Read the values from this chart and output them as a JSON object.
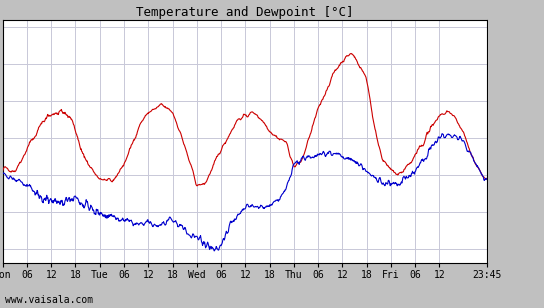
{
  "title": "Temperature and Dewpoint [°C]",
  "bg_color": "#c0c0c0",
  "plot_bg_color": "#ffffff",
  "grid_color": "#c8c8d8",
  "temp_color": "#cc0000",
  "dewpoint_color": "#0000cc",
  "ylim": [
    -12,
    21
  ],
  "yticks": [
    -10,
    -5,
    0,
    5,
    10,
    15,
    20
  ],
  "xlabel_bottom": "www.vaisala.com",
  "xtick_labels": [
    "Mon",
    "06",
    "12",
    "18",
    "Tue",
    "06",
    "12",
    "18",
    "Wed",
    "06",
    "12",
    "18",
    "Thu",
    "06",
    "12",
    "18",
    "Fri",
    "06",
    "12",
    "23:45"
  ],
  "xtick_positions": [
    0,
    6,
    12,
    18,
    24,
    30,
    36,
    42,
    48,
    54,
    60,
    66,
    72,
    78,
    84,
    90,
    96,
    102,
    108,
    119.75
  ],
  "total_hours": 119.75,
  "linewidth": 0.8,
  "ctrl_temp": [
    [
      0,
      1.0
    ],
    [
      3,
      0.5
    ],
    [
      6,
      3.5
    ],
    [
      10,
      7.5
    ],
    [
      12,
      8.0
    ],
    [
      15,
      8.5
    ],
    [
      17,
      7.5
    ],
    [
      20,
      2.5
    ],
    [
      22,
      0.5
    ],
    [
      24,
      -0.5
    ],
    [
      27,
      -1.0
    ],
    [
      30,
      1.5
    ],
    [
      34,
      7.0
    ],
    [
      36,
      8.5
    ],
    [
      38,
      9.0
    ],
    [
      39,
      9.5
    ],
    [
      40,
      9.2
    ],
    [
      42,
      8.5
    ],
    [
      44,
      5.5
    ],
    [
      46,
      2.0
    ],
    [
      48,
      -1.5
    ],
    [
      50,
      -1.2
    ],
    [
      54,
      3.5
    ],
    [
      58,
      7.5
    ],
    [
      60,
      8.0
    ],
    [
      62,
      8.5
    ],
    [
      64,
      7.5
    ],
    [
      66,
      6.0
    ],
    [
      68,
      5.0
    ],
    [
      70,
      4.5
    ],
    [
      72,
      1.0
    ],
    [
      74,
      2.0
    ],
    [
      78,
      9.0
    ],
    [
      82,
      14.0
    ],
    [
      84,
      15.5
    ],
    [
      85,
      16.0
    ],
    [
      86,
      16.5
    ],
    [
      87,
      16.0
    ],
    [
      88,
      15.0
    ],
    [
      90,
      13.0
    ],
    [
      92,
      6.0
    ],
    [
      94,
      2.0
    ],
    [
      96,
      0.5
    ],
    [
      98,
      0.0
    ],
    [
      100,
      1.0
    ],
    [
      102,
      2.5
    ],
    [
      106,
      6.5
    ],
    [
      108,
      8.0
    ],
    [
      110,
      8.5
    ],
    [
      112,
      7.5
    ],
    [
      114,
      5.5
    ],
    [
      116,
      2.5
    ],
    [
      118,
      0.5
    ],
    [
      119.75,
      -1.0
    ]
  ],
  "ctrl_dew": [
    [
      0,
      0.0
    ],
    [
      2,
      -0.3
    ],
    [
      4,
      -0.8
    ],
    [
      6,
      -1.5
    ],
    [
      8,
      -2.5
    ],
    [
      10,
      -3.2
    ],
    [
      12,
      -3.5
    ],
    [
      14,
      -3.8
    ],
    [
      16,
      -3.5
    ],
    [
      18,
      -3.2
    ],
    [
      20,
      -4.0
    ],
    [
      22,
      -4.5
    ],
    [
      24,
      -5.0
    ],
    [
      26,
      -5.5
    ],
    [
      28,
      -6.0
    ],
    [
      30,
      -6.2
    ],
    [
      32,
      -6.5
    ],
    [
      34,
      -6.8
    ],
    [
      36,
      -6.5
    ],
    [
      38,
      -7.0
    ],
    [
      40,
      -6.5
    ],
    [
      42,
      -6.2
    ],
    [
      44,
      -7.0
    ],
    [
      46,
      -8.0
    ],
    [
      48,
      -8.5
    ],
    [
      50,
      -9.5
    ],
    [
      51,
      -10.0
    ],
    [
      52,
      -10.2
    ],
    [
      53,
      -10.0
    ],
    [
      54,
      -9.5
    ],
    [
      56,
      -7.0
    ],
    [
      58,
      -5.5
    ],
    [
      60,
      -4.5
    ],
    [
      62,
      -4.2
    ],
    [
      64,
      -4.5
    ],
    [
      66,
      -4.2
    ],
    [
      68,
      -3.5
    ],
    [
      70,
      -2.0
    ],
    [
      72,
      1.5
    ],
    [
      74,
      2.0
    ],
    [
      76,
      2.5
    ],
    [
      78,
      2.8
    ],
    [
      80,
      3.0
    ],
    [
      82,
      3.0
    ],
    [
      84,
      2.5
    ],
    [
      86,
      2.0
    ],
    [
      88,
      1.5
    ],
    [
      90,
      0.5
    ],
    [
      92,
      -0.5
    ],
    [
      94,
      -1.0
    ],
    [
      96,
      -1.2
    ],
    [
      98,
      -1.0
    ],
    [
      100,
      -0.5
    ],
    [
      102,
      0.5
    ],
    [
      104,
      2.0
    ],
    [
      106,
      4.0
    ],
    [
      108,
      5.0
    ],
    [
      110,
      5.5
    ],
    [
      112,
      5.2
    ],
    [
      114,
      4.5
    ],
    [
      116,
      2.5
    ],
    [
      118,
      0.5
    ],
    [
      119.75,
      -1.0
    ]
  ]
}
